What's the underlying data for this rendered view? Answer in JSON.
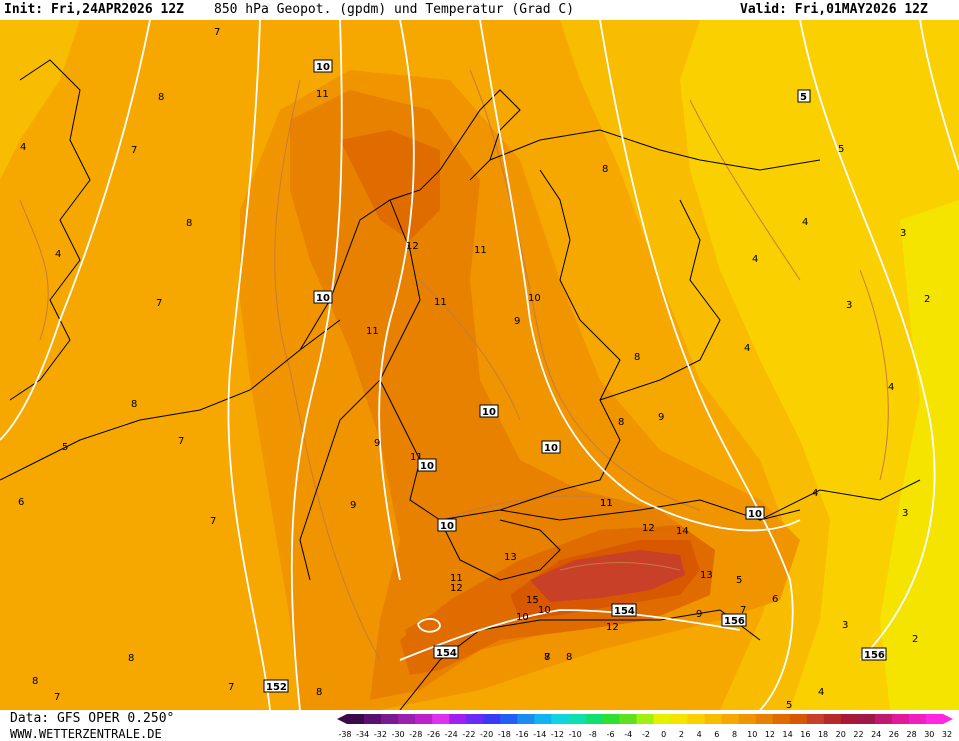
{
  "header": {
    "init": "Init: Fri,24APR2026 12Z",
    "title": "850 hPa Geopot. (gpdm) und Temperatur (Grad C)",
    "valid": "Valid: Fri,01MAY2026 12Z"
  },
  "footer": {
    "data_source": "Data: GFS OPER 0.250°",
    "site": "WWW.WETTERZENTRALE.DE"
  },
  "legend": {
    "labels": [
      "-38",
      "-34",
      "-32",
      "-30",
      "-28",
      "-26",
      "-24",
      "-22",
      "-20",
      "-18",
      "-16",
      "-14",
      "-12",
      "-10",
      "-8",
      "-6",
      "-4",
      "-2",
      "0",
      "2",
      "4",
      "6",
      "8",
      "10",
      "12",
      "14",
      "16",
      "18",
      "20",
      "22",
      "24",
      "26",
      "28",
      "30",
      "32"
    ],
    "colors": [
      "#3a0a4a",
      "#5a1070",
      "#7a1a90",
      "#9a20b0",
      "#bb22cc",
      "#dd33ee",
      "#a020f0",
      "#6a2bf5",
      "#3a3af5",
      "#2060f5",
      "#1a8ef0",
      "#10b4f0",
      "#10d4e0",
      "#10e0b0",
      "#10e070",
      "#30e030",
      "#60e020",
      "#a0f010",
      "#e6f000",
      "#f4e400",
      "#fad000",
      "#f8bc00",
      "#f6a800",
      "#f09400",
      "#e88000",
      "#e06c00",
      "#d85800",
      "#c84028",
      "#b82a2a",
      "#a81838",
      "#a01848",
      "#c01a70",
      "#e01a9a",
      "#f020c0",
      "#ff28e0"
    ]
  },
  "map": {
    "colors": {
      "t2": "#f4e400",
      "t4": "#fad000",
      "t6": "#f8bc00",
      "t8": "#f6a800",
      "t10": "#f09400",
      "t12": "#e88000",
      "t14": "#e06c00",
      "t16": "#d85800",
      "t18": "#c84028",
      "geopotential": "#ffffff",
      "isotherms": "#c87a40",
      "borders": "#000000"
    },
    "temperature_labels": [
      "7",
      "8",
      "4",
      "7",
      "8",
      "4",
      "7",
      "8",
      "7",
      "5",
      "6",
      "7",
      "8",
      "7",
      "8",
      "9",
      "9",
      "11",
      "12",
      "11",
      "11",
      "11",
      "11",
      "11",
      "9",
      "10",
      "8",
      "8",
      "8",
      "9",
      "11",
      "12",
      "14",
      "13",
      "11",
      "12",
      "13",
      "15",
      "10",
      "12",
      "10",
      "9",
      "7",
      "6",
      "5",
      "4",
      "3",
      "2",
      "3",
      "4",
      "5",
      "4",
      "3",
      "2",
      "4",
      "3",
      "4",
      "5",
      "8",
      "7",
      "8",
      "7",
      "8",
      "5",
      "4"
    ],
    "geopotential_labels": [
      "10",
      "10",
      "10",
      "10",
      "10",
      "10",
      "10",
      "154",
      "156",
      "156",
      "152",
      "154",
      "5"
    ]
  }
}
